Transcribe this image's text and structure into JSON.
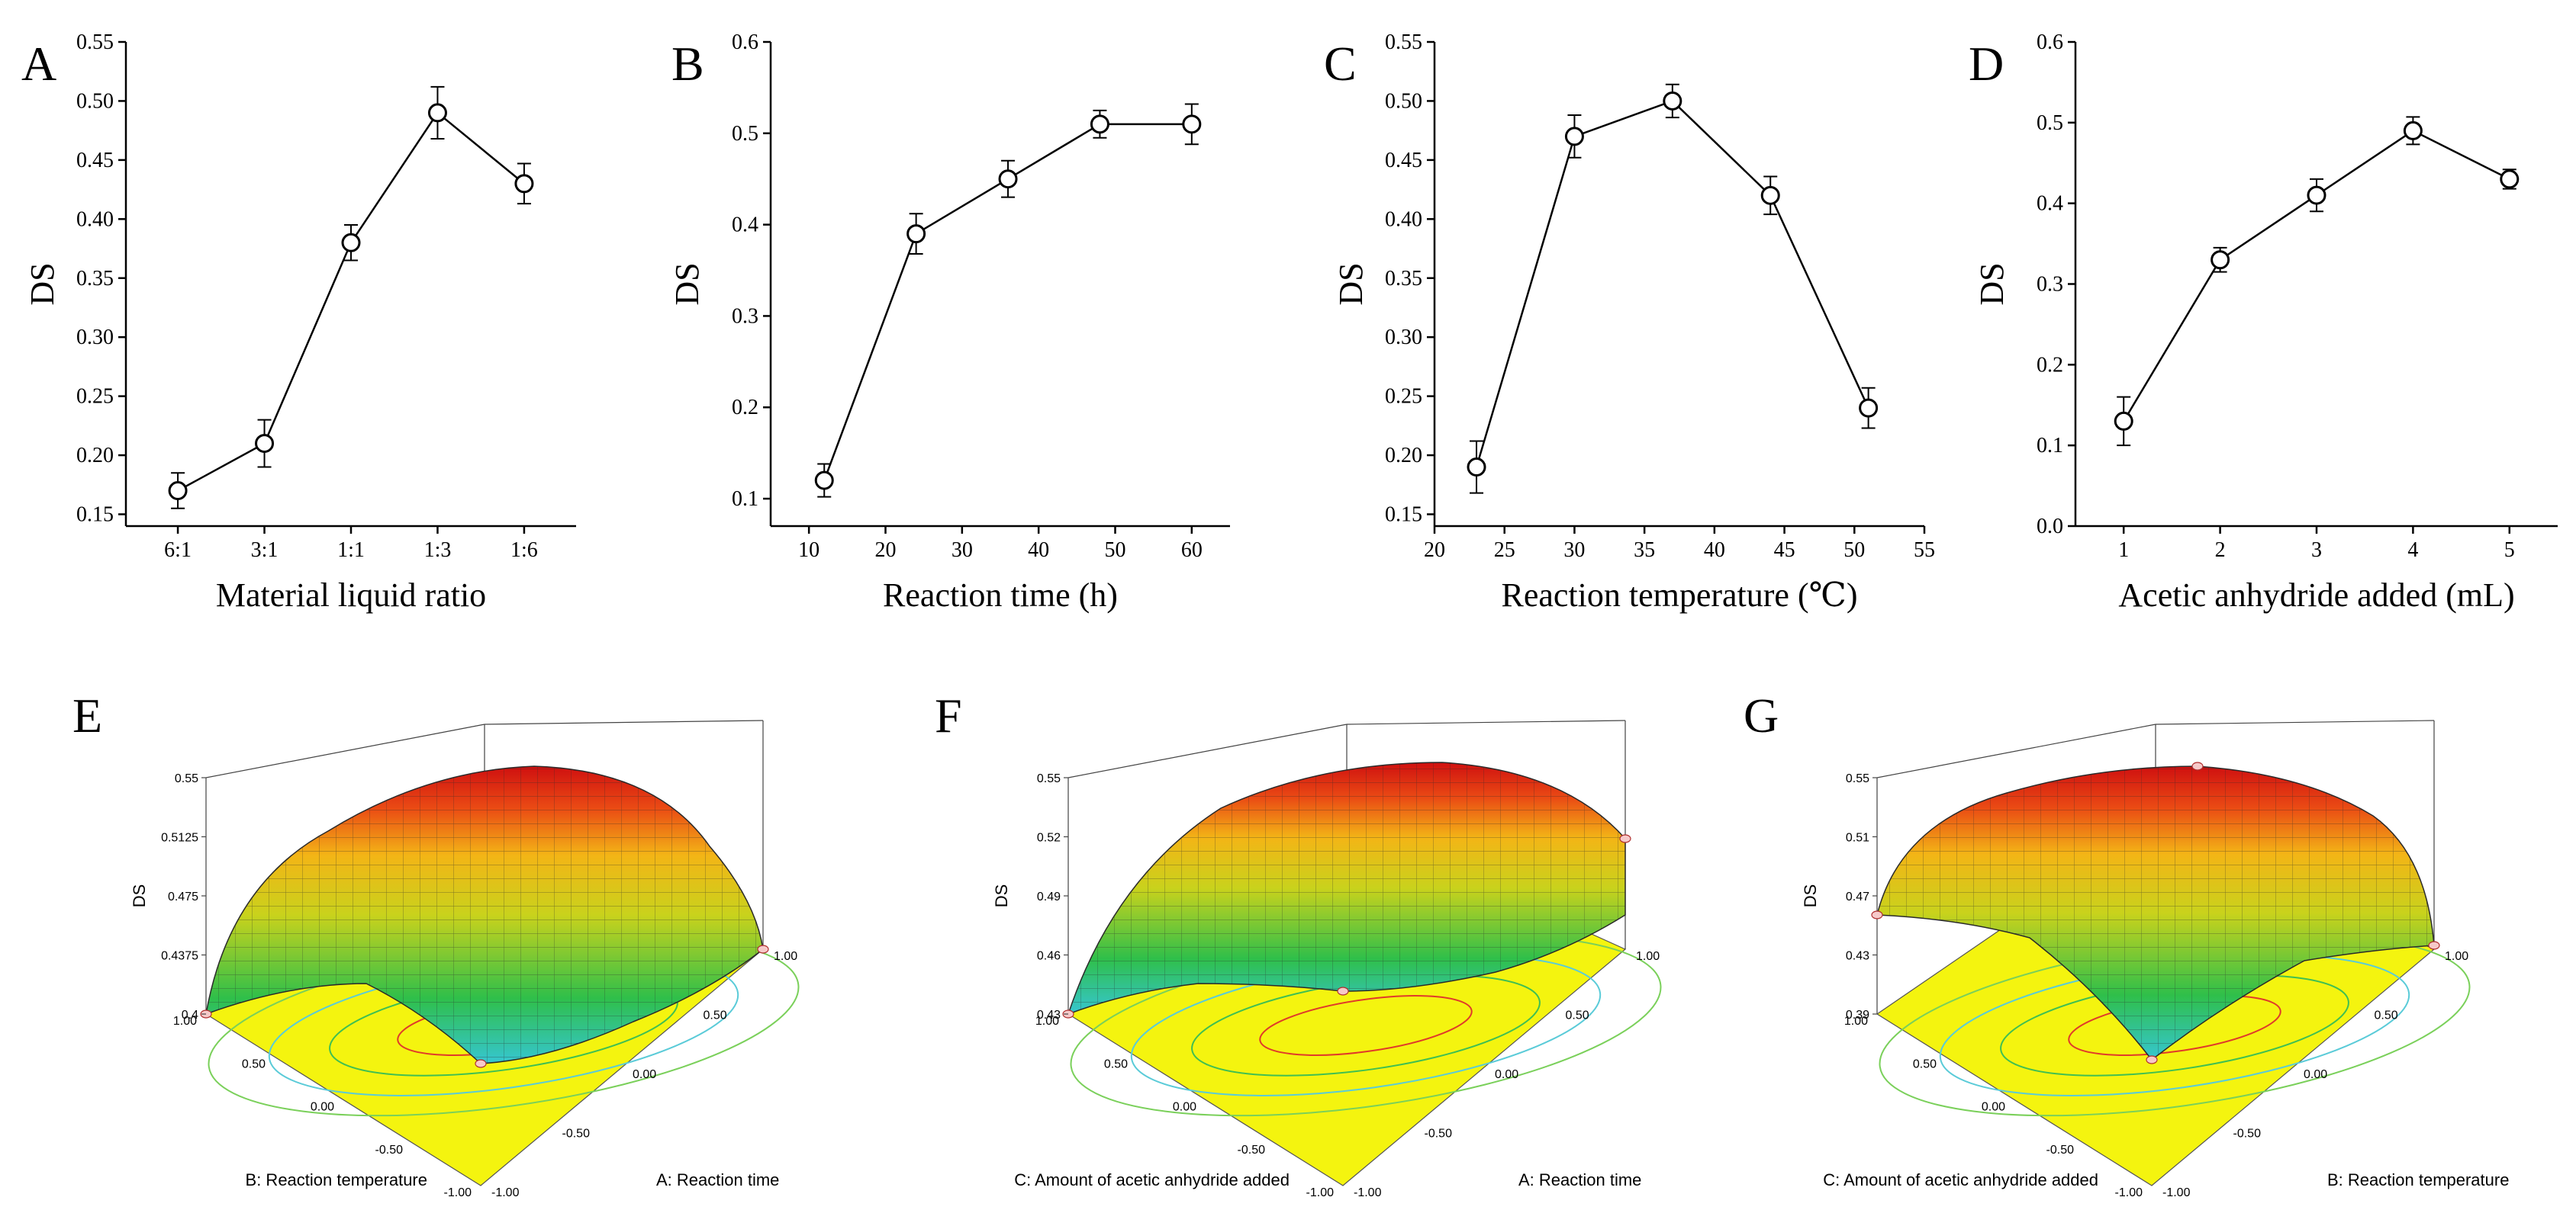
{
  "chart_data": [
    {
      "panel": "A",
      "type": "line",
      "categories": [
        "6:1",
        "3:1",
        "1:1",
        "1:3",
        "1:6"
      ],
      "values": [
        0.17,
        0.21,
        0.38,
        0.49,
        0.43
      ],
      "errors": [
        0.015,
        0.02,
        0.015,
        0.022,
        0.017
      ],
      "xlabel": "Material liquid ratio",
      "ylabel": "DS",
      "ylim": [
        0.14,
        0.55
      ],
      "yticks": [
        "0.15",
        "0.20",
        "0.25",
        "0.30",
        "0.35",
        "0.40",
        "0.45",
        "0.50",
        "0.55"
      ]
    },
    {
      "panel": "B",
      "type": "line",
      "x": [
        12,
        24,
        36,
        48,
        60
      ],
      "values": [
        0.12,
        0.39,
        0.45,
        0.51,
        0.51
      ],
      "errors": [
        0.018,
        0.022,
        0.02,
        0.015,
        0.022
      ],
      "xlabel": "Reaction time (h)",
      "ylabel": "DS",
      "xlim": [
        5,
        65
      ],
      "xticks": [
        "10",
        "20",
        "30",
        "40",
        "50",
        "60"
      ],
      "ylim": [
        0.07,
        0.6
      ],
      "yticks": [
        "0.1",
        "0.2",
        "0.3",
        "0.4",
        "0.5",
        "0.6"
      ]
    },
    {
      "panel": "C",
      "type": "line",
      "x": [
        23,
        30,
        37,
        44,
        51
      ],
      "values": [
        0.19,
        0.47,
        0.5,
        0.42,
        0.24
      ],
      "errors": [
        0.022,
        0.018,
        0.014,
        0.016,
        0.017
      ],
      "xlabel": "Reaction temperature (℃)",
      "ylabel": "DS",
      "xlim": [
        20,
        55
      ],
      "xticks": [
        "20",
        "25",
        "30",
        "35",
        "40",
        "45",
        "50",
        "55"
      ],
      "ylim": [
        0.14,
        0.55
      ],
      "yticks": [
        "0.15",
        "0.20",
        "0.25",
        "0.30",
        "0.35",
        "0.40",
        "0.45",
        "0.50",
        "0.55"
      ]
    },
    {
      "panel": "D",
      "type": "line",
      "x": [
        1,
        2,
        3,
        4,
        5
      ],
      "values": [
        0.13,
        0.33,
        0.41,
        0.49,
        0.43
      ],
      "errors": [
        0.03,
        0.015,
        0.02,
        0.017,
        0.012
      ],
      "xlabel": "Acetic anhydride added (mL)",
      "ylabel": "DS",
      "xlim": [
        0.5,
        5.5
      ],
      "xticks": [
        "1",
        "2",
        "3",
        "4",
        "5"
      ],
      "ylim": [
        0,
        0.6
      ],
      "yticks": [
        "0.0",
        "0.1",
        "0.2",
        "0.3",
        "0.4",
        "0.5",
        "0.6"
      ]
    },
    {
      "panel": "E",
      "type": "surface",
      "zlabel": "DS",
      "zticks": [
        "0.4",
        "0.4375",
        "0.475",
        "0.5125",
        "0.55"
      ],
      "xlabel": "A: Reaction time",
      "ylabel": "B: Reaction temperature",
      "xticks": [
        "-1.00",
        "-0.50",
        "0.00",
        "0.50",
        "1.00"
      ],
      "yticks": [
        "-1.00",
        "-0.50",
        "0.00",
        "0.50",
        "1.00"
      ]
    },
    {
      "panel": "F",
      "type": "surface",
      "zlabel": "DS",
      "zticks": [
        "0.43",
        "0.46",
        "0.49",
        "0.52",
        "0.55"
      ],
      "xlabel": "A: Reaction time",
      "ylabel": "C: Amount of acetic anhydride added",
      "xticks": [
        "-1.00",
        "-0.50",
        "0.00",
        "0.50",
        "1.00"
      ],
      "yticks": [
        "-1.00",
        "-0.50",
        "0.00",
        "0.50",
        "1.00"
      ]
    },
    {
      "panel": "G",
      "type": "surface",
      "zlabel": "DS",
      "zticks": [
        "0.39",
        "0.43",
        "0.47",
        "0.51",
        "0.55"
      ],
      "xlabel": "B: Reaction temperature",
      "ylabel": "C: Amount of acetic anhydride added",
      "xticks": [
        "-1.00",
        "-0.50",
        "0.00",
        "0.50",
        "1.00"
      ],
      "yticks": [
        "-1.00",
        "-0.50",
        "0.00",
        "0.50",
        "1.00"
      ]
    }
  ]
}
